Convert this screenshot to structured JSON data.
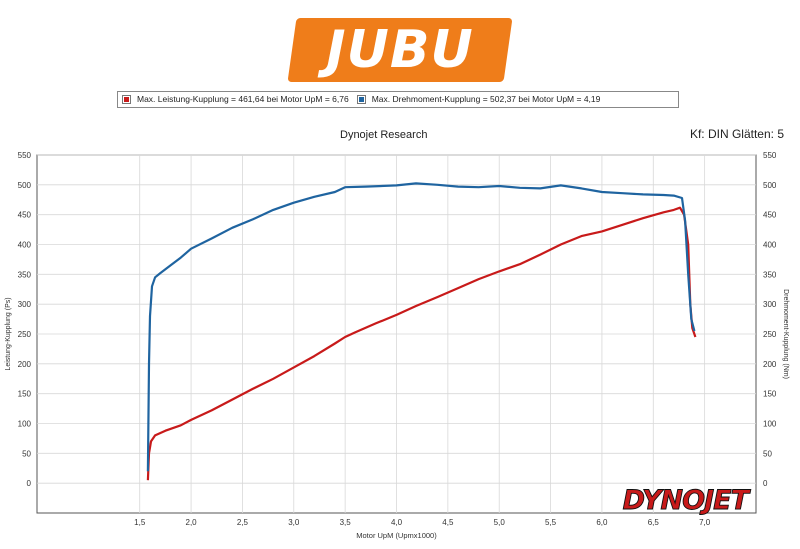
{
  "logo": {
    "text": "JUBU",
    "color": "#ef7d1a"
  },
  "legend": {
    "items": [
      {
        "label": "Max. Leistung-Kupplung = 461,64 bei Motor UpM = 6,76",
        "color": "#c81a1a"
      },
      {
        "label": "Max. Drehmoment-Kupplung = 502,37 bei Motor UpM = 4,19",
        "color": "#1f64a0"
      }
    ]
  },
  "header": {
    "title": "Dynojet Research",
    "subtitle": "Kf: DIN Glätten: 5"
  },
  "watermark": {
    "text": "DYNOJET"
  },
  "chart_data": {
    "type": "line",
    "title": "Dynojet Research",
    "subtitle": "Kf: DIN Glätten: 5",
    "xlabel": "Motor UpM (Upmx1000)",
    "ylabel_left": "Leistung-Kupplung (Ps)",
    "ylabel_right": "Drehmoment-Kupplung (Nm)",
    "xlim": [
      0.5,
      7.5
    ],
    "ylim": [
      -50,
      550
    ],
    "x_ticks": [
      "1,5",
      "2,0",
      "2,5",
      "3,0",
      "3,5",
      "4,0",
      "4,5",
      "5,0",
      "5,5",
      "6,0",
      "6,5",
      "7,0"
    ],
    "x_tick_values": [
      1.5,
      2.0,
      2.5,
      3.0,
      3.5,
      4.0,
      4.5,
      5.0,
      5.5,
      6.0,
      6.5,
      7.0
    ],
    "y_ticks": [
      0,
      50,
      100,
      150,
      200,
      250,
      300,
      350,
      400,
      450,
      500,
      550
    ],
    "grid": true,
    "series": [
      {
        "name": "Leistung-Kupplung",
        "color": "#c81a1a",
        "points": [
          [
            1.58,
            5
          ],
          [
            1.59,
            50
          ],
          [
            1.61,
            70
          ],
          [
            1.65,
            80
          ],
          [
            1.75,
            88
          ],
          [
            1.9,
            97
          ],
          [
            2.0,
            106
          ],
          [
            2.2,
            122
          ],
          [
            2.4,
            140
          ],
          [
            2.6,
            158
          ],
          [
            2.8,
            175
          ],
          [
            3.0,
            194
          ],
          [
            3.2,
            213
          ],
          [
            3.4,
            234
          ],
          [
            3.5,
            245
          ],
          [
            3.6,
            253
          ],
          [
            3.8,
            268
          ],
          [
            4.0,
            282
          ],
          [
            4.19,
            297
          ],
          [
            4.4,
            312
          ],
          [
            4.6,
            327
          ],
          [
            4.8,
            342
          ],
          [
            5.0,
            355
          ],
          [
            5.2,
            367
          ],
          [
            5.4,
            383
          ],
          [
            5.6,
            400
          ],
          [
            5.8,
            414
          ],
          [
            6.0,
            422
          ],
          [
            6.2,
            433
          ],
          [
            6.4,
            444
          ],
          [
            6.6,
            454
          ],
          [
            6.7,
            458
          ],
          [
            6.76,
            461.6
          ],
          [
            6.8,
            450
          ],
          [
            6.84,
            400
          ],
          [
            6.86,
            300
          ],
          [
            6.88,
            260
          ],
          [
            6.91,
            245
          ]
        ]
      },
      {
        "name": "Drehmoment-Kupplung",
        "color": "#1f64a0",
        "points": [
          [
            1.58,
            20
          ],
          [
            1.59,
            200
          ],
          [
            1.6,
            280
          ],
          [
            1.62,
            330
          ],
          [
            1.65,
            345
          ],
          [
            1.7,
            352
          ],
          [
            1.8,
            365
          ],
          [
            1.9,
            378
          ],
          [
            2.0,
            393
          ],
          [
            2.2,
            410
          ],
          [
            2.4,
            428
          ],
          [
            2.6,
            442
          ],
          [
            2.8,
            458
          ],
          [
            3.0,
            470
          ],
          [
            3.2,
            480
          ],
          [
            3.4,
            488
          ],
          [
            3.5,
            496
          ],
          [
            3.7,
            497
          ],
          [
            4.0,
            499
          ],
          [
            4.19,
            502.4
          ],
          [
            4.4,
            500
          ],
          [
            4.6,
            497
          ],
          [
            4.8,
            496
          ],
          [
            5.0,
            498
          ],
          [
            5.2,
            495
          ],
          [
            5.4,
            494
          ],
          [
            5.6,
            499
          ],
          [
            5.8,
            494
          ],
          [
            6.0,
            488
          ],
          [
            6.2,
            486
          ],
          [
            6.4,
            484
          ],
          [
            6.6,
            483
          ],
          [
            6.7,
            482
          ],
          [
            6.78,
            478
          ],
          [
            6.81,
            440
          ],
          [
            6.84,
            350
          ],
          [
            6.87,
            275
          ],
          [
            6.9,
            255
          ]
        ]
      }
    ]
  }
}
